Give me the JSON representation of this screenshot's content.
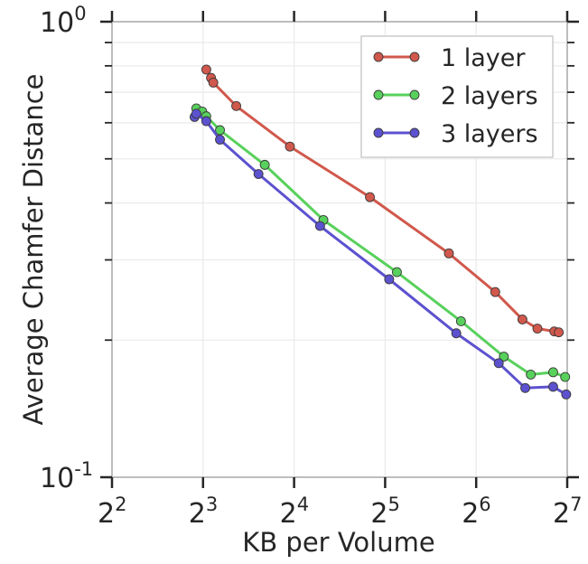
{
  "chart_data": {
    "type": "line",
    "title": "",
    "xlabel": "KB per Volume",
    "ylabel": "Average Chamfer Distance",
    "xscale": "log2",
    "yscale": "log10",
    "xlim": [
      4,
      128
    ],
    "ylim": [
      0.1,
      1.0
    ],
    "grid": true,
    "legend_position": "top-right",
    "x_ticks": [
      {
        "base": "2",
        "exp": "2"
      },
      {
        "base": "2",
        "exp": "3"
      },
      {
        "base": "2",
        "exp": "4"
      },
      {
        "base": "2",
        "exp": "5"
      },
      {
        "base": "2",
        "exp": "6"
      },
      {
        "base": "2",
        "exp": "7"
      }
    ],
    "y_ticks": [
      {
        "base": "10",
        "exp": "0"
      },
      {
        "base": "10",
        "exp": "-1"
      }
    ],
    "series": [
      {
        "name": "1 layer",
        "color": "#d1584c",
        "x": [
          8.2,
          8.5,
          8.65,
          10.3,
          15.5,
          28.5,
          52,
          74,
          91,
          102,
          116,
          120
        ],
        "y": [
          0.785,
          0.753,
          0.735,
          0.653,
          0.532,
          0.412,
          0.31,
          0.255,
          0.222,
          0.212,
          0.209,
          0.208
        ]
      },
      {
        "name": "2 layers",
        "color": "#58d15c",
        "x": [
          7.6,
          7.95,
          8.2,
          9.1,
          12.8,
          20,
          35,
          57,
          79,
          97,
          115,
          126
        ],
        "y": [
          0.645,
          0.635,
          0.62,
          0.578,
          0.485,
          0.367,
          0.282,
          0.22,
          0.184,
          0.168,
          0.17,
          0.166
        ]
      },
      {
        "name": "3 layers",
        "color": "#5c52cf",
        "x": [
          7.5,
          7.6,
          8.2,
          9.1,
          12.2,
          19.5,
          33,
          55,
          76,
          93,
          115,
          127
        ],
        "y": [
          0.618,
          0.628,
          0.605,
          0.551,
          0.463,
          0.356,
          0.272,
          0.207,
          0.178,
          0.157,
          0.158,
          0.152
        ]
      }
    ]
  }
}
